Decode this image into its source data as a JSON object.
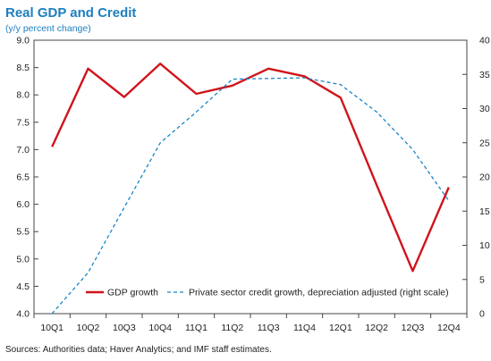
{
  "title": "Real GDP and Credit",
  "subtitle": "(y/y percent change)",
  "source": "Sources: Authorities data; Haver Analytics; and IMF staff estimates.",
  "colors": {
    "gdp": "#d0141b",
    "credit": "#1a86c8",
    "title": "#1d7fbf",
    "axis": "#444444"
  },
  "chart_data": {
    "type": "line",
    "title": "Real GDP and Credit",
    "subtitle": "(y/y percent change)",
    "categories": [
      "10Q1",
      "10Q2",
      "10Q3",
      "10Q4",
      "11Q1",
      "11Q2",
      "11Q3",
      "11Q4",
      "12Q1",
      "12Q2",
      "12Q3",
      "12Q4"
    ],
    "y_left": {
      "min": 4.0,
      "max": 9.0,
      "step": 0.5,
      "ticks": [
        "4.0",
        "4.5",
        "5.0",
        "5.5",
        "6.0",
        "6.5",
        "7.0",
        "7.5",
        "8.0",
        "8.5",
        "9.0"
      ]
    },
    "y_right": {
      "min": 0,
      "max": 40,
      "step": 5,
      "ticks": [
        "0",
        "5",
        "10",
        "15",
        "20",
        "25",
        "30",
        "35",
        "40"
      ]
    },
    "series": [
      {
        "name": "GDP growth",
        "axis": "left",
        "style": "solid",
        "values": [
          7.05,
          8.48,
          7.96,
          8.57,
          8.02,
          8.17,
          8.48,
          8.34,
          7.95,
          6.35,
          4.78,
          6.31
        ]
      },
      {
        "name": "Private sector credit growth, depreciation adjusted (right scale)",
        "axis": "right",
        "style": "dashed",
        "values": [
          0.0,
          6.0,
          15.5,
          25.0,
          29.5,
          34.3,
          34.4,
          34.5,
          33.5,
          29.5,
          24.0,
          16.5
        ]
      }
    ],
    "legend_position": "bottom-right",
    "grid": false
  }
}
